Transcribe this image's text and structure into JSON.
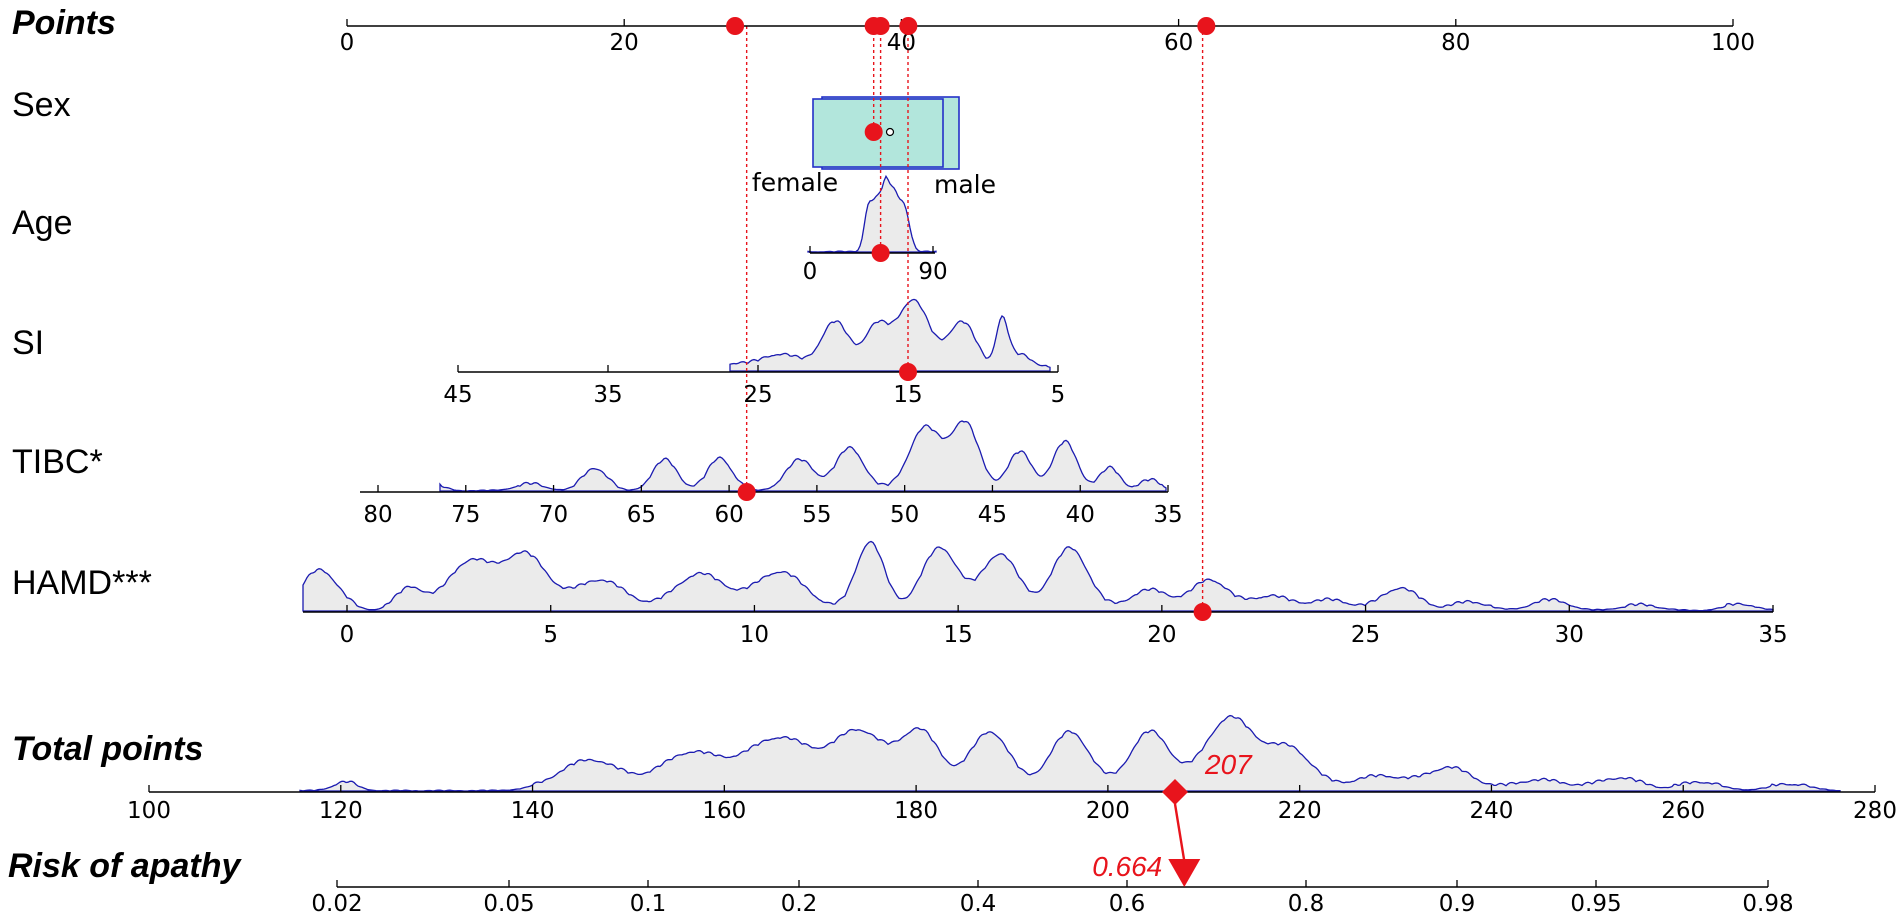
{
  "chart_data": {
    "type": "nomogram",
    "accent_color": "#e8141c",
    "density_color": "#1b1bb0",
    "density_fill": "#ebebeb",
    "box_fill": "#b2e6dc",
    "rows": [
      {
        "key": "points",
        "label": "Points",
        "ticks": [
          0,
          20,
          40,
          60,
          80,
          100
        ],
        "markers_points": [
          28,
          38,
          38.5,
          40.5,
          62
        ]
      },
      {
        "key": "sex",
        "label": "Sex",
        "categories": [
          "female",
          "male"
        ],
        "marker_points": 38
      },
      {
        "key": "age",
        "label": "Age",
        "ticks": [
          0,
          90
        ],
        "marker_points": 38.5
      },
      {
        "key": "si",
        "label": "SI",
        "ticks": [
          45,
          35,
          25,
          15,
          5
        ],
        "marker_value": 15
      },
      {
        "key": "tibc",
        "label": "TIBC*",
        "ticks": [
          80,
          75,
          70,
          65,
          60,
          55,
          50,
          45,
          40,
          35
        ],
        "marker_value": 59
      },
      {
        "key": "hamd",
        "label": "HAMD***",
        "ticks": [
          0,
          5,
          10,
          15,
          20,
          25,
          30,
          35
        ],
        "marker_value": 21
      },
      {
        "key": "total",
        "label": "Total points",
        "ticks": [
          100,
          120,
          140,
          160,
          180,
          200,
          220,
          240,
          260,
          280
        ],
        "marker_value": 207,
        "marker_label": "207"
      },
      {
        "key": "risk",
        "label": "Risk of apathy",
        "ticks": [
          "0.02",
          "0.05",
          "0.1",
          "0.2",
          "0.4",
          "0.6",
          "0.8",
          "0.9",
          "0.95",
          "0.98"
        ],
        "marker_value": 0.664,
        "marker_label": "0.664"
      }
    ]
  }
}
